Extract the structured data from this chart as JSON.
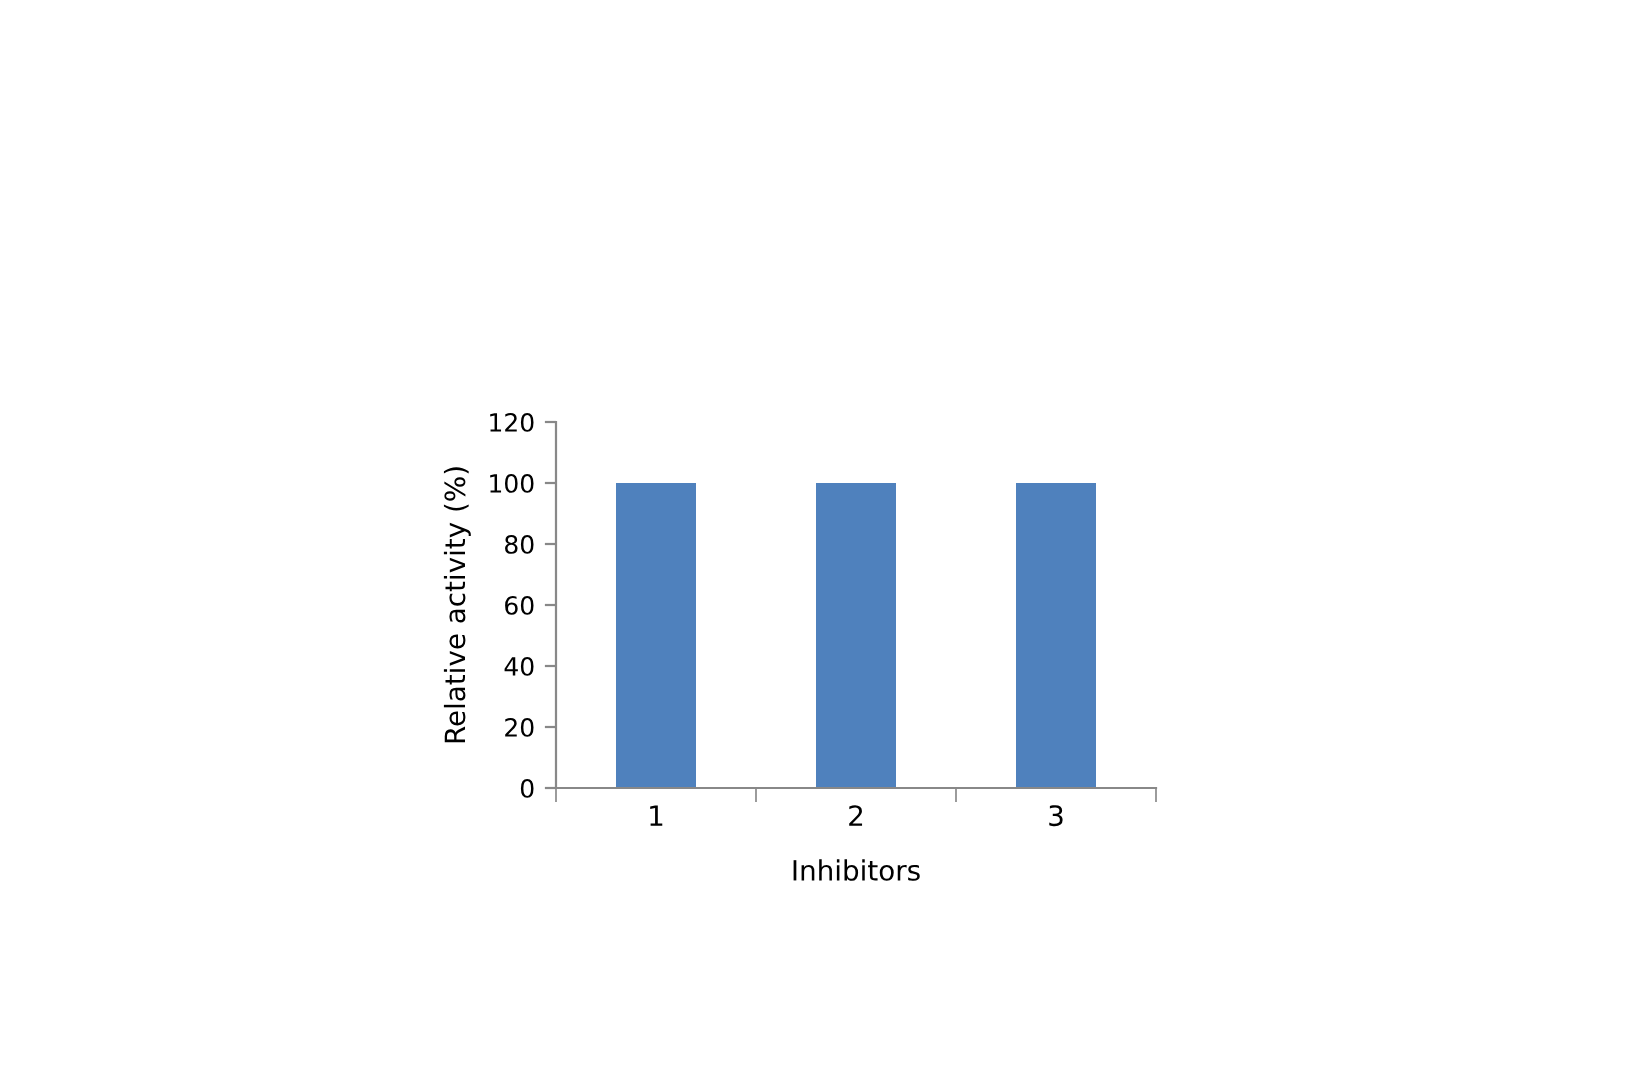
{
  "chart_data": {
    "type": "bar",
    "xlabel": "Inhibitors",
    "ylabel": "Relative activity (%)",
    "categories": [
      "1",
      "2",
      "3"
    ],
    "values": [
      100,
      100,
      100
    ],
    "color": "#4f81bd",
    "ylim": [
      0,
      120
    ],
    "yticks": [
      0,
      20,
      40,
      60,
      80,
      100,
      120
    ],
    "grid": false,
    "legend": false
  }
}
